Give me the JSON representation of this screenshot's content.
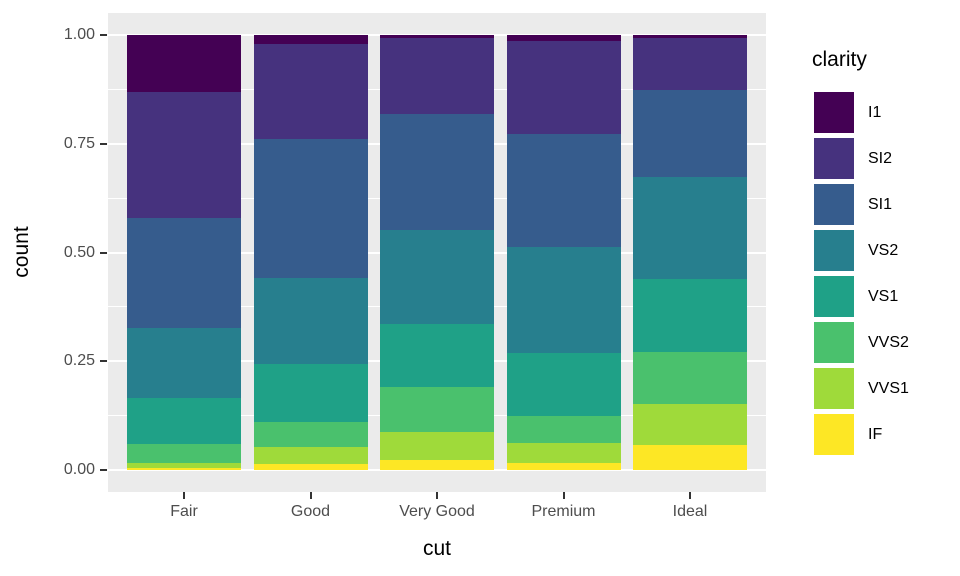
{
  "theme": {
    "panel_bg": "#EBEBEB",
    "grid_color": "#FFFFFF",
    "tick_color": "#333333",
    "tick_label_color": "#4D4D4D",
    "text_color": "#000000"
  },
  "chart_data": {
    "type": "bar",
    "subtype": "stacked-fill-vertical",
    "title": "",
    "xlabel": "cut",
    "ylabel": "count",
    "categories": [
      "Fair",
      "Good",
      "Very Good",
      "Premium",
      "Ideal"
    ],
    "series": [
      {
        "name": "I1",
        "color": "#440154",
        "values": [
          0.1304,
          0.0196,
          0.007,
          0.0149,
          0.0068
        ]
      },
      {
        "name": "SI2",
        "color": "#46327E",
        "values": [
          0.2894,
          0.2203,
          0.1738,
          0.2138,
          0.1206
        ]
      },
      {
        "name": "SI1",
        "color": "#365C8D",
        "values": [
          0.2534,
          0.318,
          0.2682,
          0.2592,
          0.1987
        ]
      },
      {
        "name": "VS2",
        "color": "#277F8E",
        "values": [
          0.1621,
          0.1994,
          0.2144,
          0.2434,
          0.2353
        ]
      },
      {
        "name": "VS1",
        "color": "#1FA187",
        "values": [
          0.1056,
          0.1321,
          0.1469,
          0.1442,
          0.1665
        ]
      },
      {
        "name": "VVS2",
        "color": "#4AC16D",
        "values": [
          0.0429,
          0.0583,
          0.1022,
          0.0631,
          0.1209
        ]
      },
      {
        "name": "VVS1",
        "color": "#9FDA3A",
        "values": [
          0.0106,
          0.0379,
          0.0653,
          0.0447,
          0.095
        ]
      },
      {
        "name": "IF",
        "color": "#FDE725",
        "values": [
          0.0056,
          0.0145,
          0.0222,
          0.0167,
          0.0562
        ]
      }
    ],
    "stack_order_note": "series listed top-to-bottom of each bar; IF is at the baseline",
    "ylim": [
      0,
      1
    ],
    "y_major_ticks": [
      {
        "value": 1.0,
        "label": "1.00"
      },
      {
        "value": 0.75,
        "label": "0.75"
      },
      {
        "value": 0.5,
        "label": "0.50"
      },
      {
        "value": 0.25,
        "label": "0.25"
      },
      {
        "value": 0.0,
        "label": "0.00"
      }
    ],
    "y_minor_ticks": [
      0.125,
      0.375,
      0.625,
      0.875
    ],
    "grid": true,
    "legend_title": "clarity",
    "legend_position": "right"
  }
}
